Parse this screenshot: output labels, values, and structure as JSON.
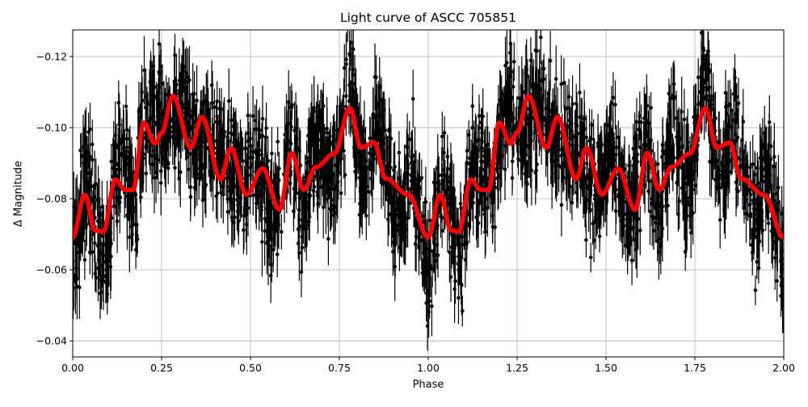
{
  "chart_data": {
    "type": "line",
    "title": "Light curve of ASCC 705851",
    "xlabel": "Phase",
    "ylabel": "Δ Magnitude",
    "xlim": [
      0.0,
      2.0
    ],
    "ylim": [
      -0.0355,
      -0.1275
    ],
    "y_inverted": true,
    "grid": true,
    "xticks": [
      0.0,
      0.25,
      0.5,
      0.75,
      1.0,
      1.25,
      1.5,
      1.75,
      2.0
    ],
    "xtick_labels": [
      "0.00",
      "0.25",
      "0.50",
      "0.75",
      "1.00",
      "1.25",
      "1.50",
      "1.75",
      "2.00"
    ],
    "yticks": [
      -0.12,
      -0.1,
      -0.08,
      -0.06,
      -0.04
    ],
    "ytick_labels": [
      "−0.12",
      "−0.10",
      "−0.08",
      "−0.06",
      "−0.04"
    ],
    "series": [
      {
        "name": "observations",
        "style": "errorbar-points",
        "color": "#000000",
        "description": "dense black data points with error bars, scatter roughly ±0.025 around the model, phase-folded and repeated over two cycles"
      },
      {
        "name": "model fit",
        "style": "thick-line",
        "color": "#ff0000",
        "period_in_phase": 1.0,
        "x": [
          0.0,
          0.034,
          0.064,
          0.086,
          0.12,
          0.148,
          0.17,
          0.2,
          0.232,
          0.25,
          0.282,
          0.332,
          0.364,
          0.416,
          0.445,
          0.489,
          0.534,
          0.582,
          0.616,
          0.65,
          0.684,
          0.736,
          0.78,
          0.811,
          0.848,
          0.88,
          0.945,
          1.0
        ],
        "y": [
          -0.0691,
          -0.0811,
          -0.0711,
          -0.0707,
          -0.0854,
          -0.0825,
          -0.0825,
          -0.1014,
          -0.0955,
          -0.0985,
          -0.1089,
          -0.0944,
          -0.103,
          -0.0855,
          -0.0942,
          -0.0812,
          -0.0885,
          -0.0769,
          -0.0929,
          -0.0825,
          -0.0889,
          -0.0927,
          -0.1055,
          -0.0944,
          -0.0958,
          -0.0857,
          -0.0811,
          -0.0691
        ]
      }
    ]
  }
}
